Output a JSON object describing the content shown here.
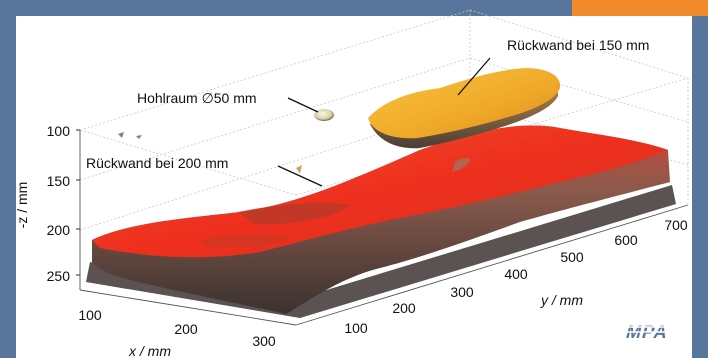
{
  "theme": {
    "frame_color": "#58769c",
    "accent_color": "#f08a2b",
    "background": "#ffffff"
  },
  "chart_data": {
    "type": "surface-3d",
    "title": "",
    "xlabel": "x  /  mm",
    "ylabel": "y  /  mm",
    "zlabel": "-z  /  mm",
    "x_ticks": [
      "100",
      "200",
      "300"
    ],
    "y_ticks": [
      "100",
      "200",
      "300",
      "400",
      "500",
      "600",
      "700"
    ],
    "z_ticks": [
      "100",
      "150",
      "200",
      "250"
    ],
    "xlim": [
      50,
      320
    ],
    "ylim": [
      50,
      720
    ],
    "zlim": [
      80,
      280
    ],
    "grid": true,
    "annotations": [
      {
        "name": "backwall-150",
        "text": "Rückwand bei 150 mm",
        "depth_mm": 150,
        "color": "#f0b428"
      },
      {
        "name": "cavity",
        "text": "Hohlraum ∅50 mm",
        "diameter_mm": 50,
        "color": "#d8cfa8"
      },
      {
        "name": "backwall-200",
        "text": "Rückwand bei 200 mm",
        "depth_mm": 200,
        "color": "#e83020"
      }
    ]
  },
  "logo": {
    "text": "MPA",
    "color": "#58769c"
  }
}
